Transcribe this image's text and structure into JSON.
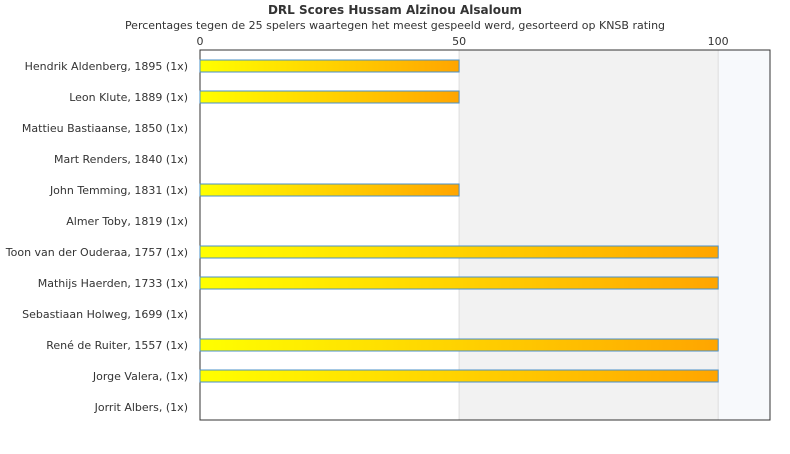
{
  "chart_data": {
    "type": "bar",
    "orientation": "horizontal",
    "title": "DRL Scores Hussam Alzinou Alsaloum",
    "subtitle": "Percentages tegen de 25 spelers waartegen het meest gespeeld werd, gesorteerd op KNSB rating",
    "categories": [
      "Hendrik Aldenberg, 1895 (1x)",
      "Leon Klute, 1889 (1x)",
      "Mattieu Bastiaanse, 1850 (1x)",
      "Mart Renders, 1840 (1x)",
      "John Temming, 1831 (1x)",
      "Almer Toby, 1819 (1x)",
      "Toon van der Ouderaa, 1757 (1x)",
      "Mathijs Haerden, 1733 (1x)",
      "Sebastiaan Holweg, 1699 (1x)",
      "René de Ruiter, 1557 (1x)",
      "Jorge Valera,  (1x)",
      "Jorrit Albers,  (1x)"
    ],
    "values": [
      50,
      50,
      0,
      0,
      50,
      0,
      100,
      100,
      0,
      100,
      100,
      0
    ],
    "xlim": [
      0,
      110
    ],
    "xticks": [
      0,
      50,
      100
    ],
    "xtick_labels": [
      "0",
      "50",
      "100"
    ],
    "axis_position": "top",
    "grid": true,
    "legend": "none",
    "colors": {
      "bar_start": "#ffff00",
      "bar_end": "#ffa500",
      "bar_border": "#4a90c8",
      "band_50_100": "#f2f2f2",
      "band_100_plus": "#f7f9fc",
      "plot_border": "#333333",
      "gridline": "#dddddd",
      "text": "#333333"
    }
  }
}
